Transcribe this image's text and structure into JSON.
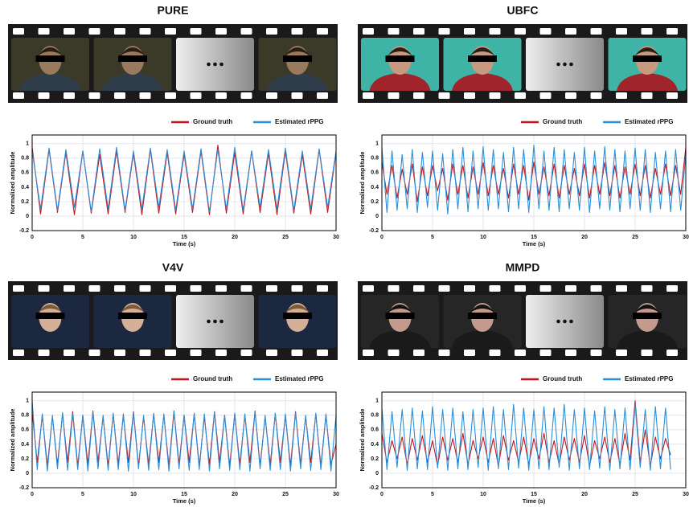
{
  "chart_data": [
    {
      "type": "line",
      "title": "PURE",
      "x_label": "Time (s)",
      "y_label": "Normalized amplitude",
      "x": [
        0,
        0.83,
        1.67,
        2.5,
        3.33,
        4.17,
        5,
        5.83,
        6.67,
        7.5,
        8.33,
        9.17,
        10,
        10.83,
        11.67,
        12.5,
        13.33,
        14.17,
        15,
        15.83,
        16.67,
        17.5,
        18.33,
        19.17,
        20,
        20.83,
        21.67,
        22.5,
        23.33,
        24.17,
        25,
        25.83,
        26.67,
        27.5,
        28.33,
        29.17,
        30
      ],
      "series": [
        {
          "name": "Ground truth",
          "color": "#c4161c",
          "values": [
            0.95,
            0.03,
            0.92,
            0.05,
            0.88,
            0.02,
            0.9,
            0.04,
            0.85,
            0.03,
            0.9,
            0.05,
            0.87,
            0.02,
            0.92,
            0.04,
            0.88,
            0.03,
            0.86,
            0.05,
            0.9,
            0.02,
            0.98,
            0.04,
            0.88,
            0.03,
            0.9,
            0.05,
            0.87,
            0.02,
            0.9,
            0.04,
            0.85,
            0.03,
            0.92,
            0.05,
            0.88
          ]
        },
        {
          "name": "Estimated rPPG",
          "color": "#2b8fd8",
          "values": [
            0.9,
            0.1,
            0.94,
            0.08,
            0.92,
            0.12,
            0.9,
            0.06,
            0.93,
            0.1,
            0.95,
            0.08,
            0.9,
            0.1,
            0.94,
            0.12,
            0.92,
            0.08,
            0.9,
            0.1,
            0.93,
            0.06,
            0.92,
            0.1,
            0.95,
            0.08,
            0.9,
            0.12,
            0.92,
            0.1,
            0.94,
            0.08,
            0.9,
            0.1,
            0.93,
            0.12,
            0.9
          ]
        }
      ],
      "xlim": [
        0,
        30
      ],
      "ylim": [
        -0.2,
        1.12
      ],
      "xticks": [
        0,
        5,
        10,
        15,
        20,
        25,
        30
      ],
      "yticks": [
        -0.2,
        0,
        0.2,
        0.4,
        0.6,
        0.8,
        1
      ],
      "grid": true
    },
    {
      "type": "line",
      "title": "UBFC",
      "x_label": "Time (s)",
      "y_label": "Normalized amplitude",
      "x": [
        0,
        0.5,
        1,
        1.5,
        2,
        2.5,
        3,
        3.5,
        4,
        4.5,
        5,
        5.5,
        6,
        6.5,
        7,
        7.5,
        8,
        8.5,
        9,
        9.5,
        10,
        10.5,
        11,
        11.5,
        12,
        12.5,
        13,
        13.5,
        14,
        14.5,
        15,
        15.5,
        16,
        16.5,
        17,
        17.5,
        18,
        18.5,
        19,
        19.5,
        20,
        20.5,
        21,
        21.5,
        22,
        22.5,
        23,
        23.5,
        24,
        24.5,
        25,
        25.5,
        26,
        26.5,
        27,
        27.5,
        28,
        28.5,
        29,
        29.5,
        30
      ],
      "series": [
        {
          "name": "Ground truth",
          "color": "#c4161c",
          "values": [
            0.75,
            0.3,
            0.7,
            0.25,
            0.65,
            0.3,
            0.72,
            0.2,
            0.68,
            0.28,
            0.7,
            0.35,
            0.66,
            0.22,
            0.72,
            0.3,
            0.7,
            0.25,
            0.68,
            0.3,
            0.74,
            0.28,
            0.7,
            0.3,
            0.66,
            0.25,
            0.72,
            0.3,
            0.7,
            0.22,
            0.75,
            0.3,
            0.68,
            0.28,
            0.72,
            0.25,
            0.7,
            0.3,
            0.66,
            0.28,
            0.72,
            0.25,
            0.7,
            0.3,
            0.74,
            0.28,
            0.7,
            0.25,
            0.68,
            0.3,
            0.72,
            0.28,
            0.7,
            0.25,
            0.66,
            0.3,
            0.72,
            0.28,
            0.7,
            0.3,
            0.95
          ]
        },
        {
          "name": "Estimated rPPG",
          "color": "#2b8fd8",
          "values": [
            0.95,
            0.05,
            0.9,
            0.08,
            0.85,
            0.1,
            0.92,
            0.05,
            0.88,
            0.12,
            0.9,
            0.08,
            0.86,
            0.03,
            0.92,
            0.1,
            0.95,
            0.06,
            0.9,
            0.1,
            0.96,
            0.08,
            0.92,
            0.1,
            0.88,
            0.06,
            0.95,
            0.1,
            0.92,
            0.05,
            0.98,
            0.1,
            0.9,
            0.08,
            0.95,
            0.06,
            0.92,
            0.1,
            0.88,
            0.08,
            0.95,
            0.05,
            0.9,
            0.1,
            0.96,
            0.08,
            0.92,
            0.06,
            0.9,
            0.1,
            0.94,
            0.08,
            0.92,
            0.05,
            0.88,
            0.1,
            0.9,
            0.06,
            0.92,
            0.08,
            0.85
          ]
        }
      ],
      "xlim": [
        0,
        30
      ],
      "ylim": [
        -0.2,
        1.12
      ],
      "xticks": [
        0,
        5,
        10,
        15,
        20,
        25,
        30
      ],
      "yticks": [
        -0.2,
        0,
        0.2,
        0.4,
        0.6,
        0.8,
        1
      ],
      "grid": true
    },
    {
      "type": "line",
      "title": "V4V",
      "x_label": "Time (s)",
      "y_label": "Normalized amplitude",
      "x": [
        0,
        0.5,
        1,
        1.5,
        2,
        2.5,
        3,
        3.5,
        4,
        4.5,
        5,
        5.5,
        6,
        6.5,
        7,
        7.5,
        8,
        8.5,
        9,
        9.5,
        10,
        10.5,
        11,
        11.5,
        12,
        12.5,
        13,
        13.5,
        14,
        14.5,
        15,
        15.5,
        16,
        16.5,
        17,
        17.5,
        18,
        18.5,
        19,
        19.5,
        20,
        20.5,
        21,
        21.5,
        22,
        22.5,
        23,
        23.5,
        24,
        24.5,
        25,
        25.5,
        26,
        26.5,
        27,
        27.5,
        28,
        28.5,
        29,
        29.5,
        30
      ],
      "series": [
        {
          "name": "Ground truth",
          "color": "#c4161c",
          "values": [
            0.85,
            0.15,
            0.8,
            0.1,
            0.78,
            0.12,
            0.82,
            0.15,
            0.85,
            0.1,
            0.8,
            0.12,
            0.86,
            0.15,
            0.78,
            0.1,
            0.82,
            0.12,
            0.8,
            0.15,
            0.85,
            0.1,
            0.78,
            0.12,
            0.82,
            0.15,
            0.8,
            0.1,
            0.86,
            0.12,
            0.8,
            0.15,
            0.82,
            0.1,
            0.78,
            0.12,
            0.85,
            0.15,
            0.8,
            0.1,
            0.82,
            0.12,
            0.8,
            0.15,
            0.86,
            0.1,
            0.78,
            0.12,
            0.82,
            0.15,
            0.8,
            0.1,
            0.85,
            0.12,
            0.78,
            0.15,
            0.82,
            0.1,
            0.8,
            0.12,
            0.4
          ]
        },
        {
          "name": "Estimated rPPG",
          "color": "#2b8fd8",
          "values": [
            1,
            0.05,
            0.82,
            0.03,
            0.8,
            0.06,
            0.84,
            0.04,
            0.82,
            0.05,
            0.8,
            0.03,
            0.85,
            0.06,
            0.8,
            0.04,
            0.83,
            0.05,
            0.82,
            0.03,
            0.84,
            0.06,
            0.8,
            0.04,
            0.83,
            0.05,
            0.82,
            0.03,
            0.85,
            0.06,
            0.8,
            0.04,
            0.83,
            0.05,
            0.82,
            0.03,
            0.84,
            0.06,
            0.8,
            0.04,
            0.83,
            0.05,
            0.82,
            0.03,
            0.85,
            0.06,
            0.8,
            0.04,
            0.83,
            0.05,
            0.82,
            0.03,
            0.84,
            0.06,
            0.8,
            0.04,
            0.83,
            0.05,
            0.82,
            0.03,
            0.8
          ]
        }
      ],
      "xlim": [
        0,
        30
      ],
      "ylim": [
        -0.2,
        1.12
      ],
      "xticks": [
        0,
        5,
        10,
        15,
        20,
        25,
        30
      ],
      "yticks": [
        -0.2,
        0,
        0.2,
        0.4,
        0.6,
        0.8,
        1
      ],
      "grid": true
    },
    {
      "type": "line",
      "title": "MMPD",
      "x_label": "Time (s)",
      "y_label": "Normalized amplitude",
      "x": [
        0,
        0.5,
        1,
        1.5,
        2,
        2.5,
        3,
        3.5,
        4,
        4.5,
        5,
        5.5,
        6,
        6.5,
        7,
        7.5,
        8,
        8.5,
        9,
        9.5,
        10,
        10.5,
        11,
        11.5,
        12,
        12.5,
        13,
        13.5,
        14,
        14.5,
        15,
        15.5,
        16,
        16.5,
        17,
        17.5,
        18,
        18.5,
        19,
        19.5,
        20,
        20.5,
        21,
        21.5,
        22,
        22.5,
        23,
        23.5,
        24,
        24.5,
        25,
        25.5,
        26,
        26.5,
        27,
        27.5,
        28,
        28.5
      ],
      "series": [
        {
          "name": "Ground truth",
          "color": "#c4161c",
          "values": [
            0.55,
            0.15,
            0.45,
            0.2,
            0.5,
            0.12,
            0.48,
            0.18,
            0.52,
            0.15,
            0.45,
            0.1,
            0.5,
            0.18,
            0.48,
            0.15,
            0.55,
            0.12,
            0.45,
            0.2,
            0.5,
            0.15,
            0.48,
            0.1,
            0.52,
            0.18,
            0.45,
            0.15,
            0.5,
            0.12,
            0.48,
            0.2,
            0.55,
            0.15,
            0.45,
            0.12,
            0.5,
            0.18,
            0.48,
            0.15,
            0.52,
            0.1,
            0.45,
            0.2,
            0.5,
            0.15,
            0.48,
            0.12,
            0.55,
            0.18,
            1,
            0.15,
            0.6,
            0.1,
            0.5,
            0.2,
            0.48,
            0.25
          ]
        },
        {
          "name": "Estimated rPPG",
          "color": "#2b8fd8",
          "values": [
            0.9,
            0.05,
            0.85,
            0.08,
            0.88,
            0.04,
            0.9,
            0.06,
            0.86,
            0.05,
            0.92,
            0.07,
            0.88,
            0.04,
            0.9,
            0.06,
            0.85,
            0.05,
            0.88,
            0.08,
            0.9,
            0.04,
            0.92,
            0.06,
            0.88,
            0.05,
            0.95,
            0.07,
            0.9,
            0.04,
            0.88,
            0.06,
            0.92,
            0.05,
            0.9,
            0.08,
            0.95,
            0.04,
            0.88,
            0.06,
            0.9,
            0.05,
            0.86,
            0.07,
            0.92,
            0.04,
            0.88,
            0.06,
            0.9,
            0.05,
            0.95,
            0.08,
            0.88,
            0.04,
            0.92,
            0.06,
            0.9,
            0.05
          ]
        }
      ],
      "xlim": [
        0,
        30
      ],
      "ylim": [
        -0.2,
        1.12
      ],
      "xticks": [
        0,
        5,
        10,
        15,
        20,
        25,
        30
      ],
      "yticks": [
        -0.2,
        0,
        0.2,
        0.4,
        0.6,
        0.8,
        1
      ],
      "grid": true
    }
  ]
}
